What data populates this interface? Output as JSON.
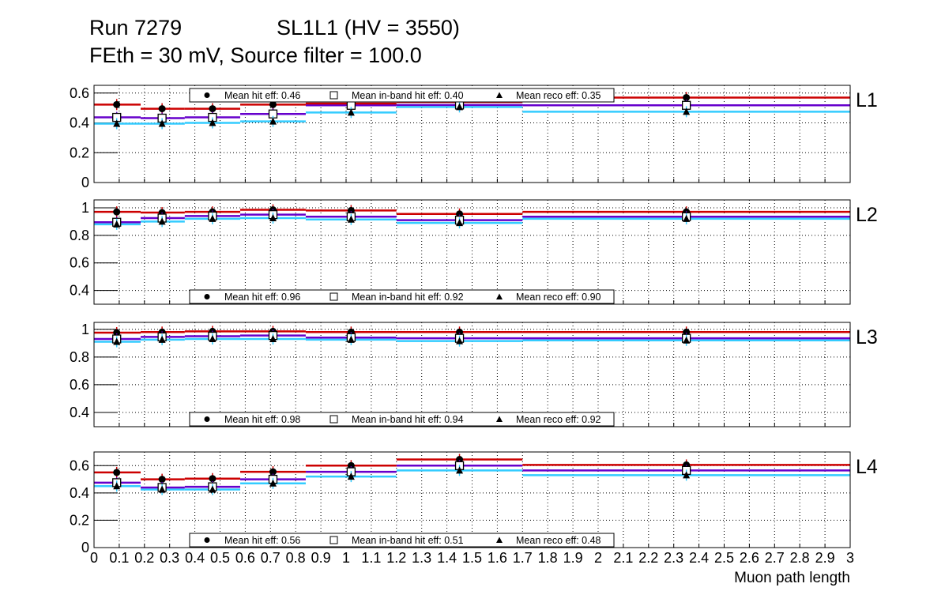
{
  "title": {
    "run": "Run 7279",
    "chamber": "SL1L1 (HV = 3550)",
    "subtitle": "FEth = 30 mV, Source filter = 100.0"
  },
  "colors": {
    "hit": "#cc0000",
    "inband": "#6600cc",
    "reco": "#33ccff"
  },
  "chart_data": {
    "type": "step",
    "xlabel": "Muon path length",
    "xlim": [
      0,
      3
    ],
    "x_tick_labels": [
      "0",
      "0.1",
      "0.2",
      "0.3",
      "0.4",
      "0.5",
      "0.6",
      "0.7",
      "0.8",
      "0.9",
      "1",
      "1.1",
      "1.2",
      "1.3",
      "1.4",
      "1.5",
      "1.6",
      "1.7",
      "1.8",
      "1.9",
      "2",
      "2.1",
      "2.2",
      "2.3",
      "2.4",
      "2.5",
      "2.6",
      "2.7",
      "2.8",
      "2.9",
      "3"
    ],
    "bin_edges": [
      0,
      0.185,
      0.36,
      0.58,
      0.84,
      1.2,
      1.7,
      3.0
    ],
    "point_x": [
      0.09,
      0.27,
      0.47,
      0.71,
      1.02,
      1.45,
      2.35
    ],
    "panels": [
      {
        "label": "L1",
        "ylim": [
          0,
          0.652
        ],
        "yticks": [
          "0",
          "0.2",
          "0.4",
          "0.6"
        ],
        "legend_pos": "top",
        "legend": [
          "Mean hit  eff: 0.46",
          "Mean in-band hit eff: 0.40",
          "Mean reco eff: 0.35"
        ],
        "series": [
          {
            "name": "hit",
            "values": [
              0.523,
              0.495,
              0.495,
              0.523,
              0.53,
              0.54,
              0.57
            ]
          },
          {
            "name": "inband",
            "values": [
              0.437,
              0.432,
              0.437,
              0.46,
              0.518,
              0.52,
              0.518
            ]
          },
          {
            "name": "reco",
            "values": [
              0.395,
              0.395,
              0.4,
              0.41,
              0.47,
              0.507,
              0.475
            ]
          }
        ]
      },
      {
        "label": "L2",
        "ylim": [
          0.3,
          1.057
        ],
        "yticks": [
          "0.4",
          "0.6",
          "0.8",
          "1"
        ],
        "legend_pos": "bottom",
        "legend": [
          "Mean hit  eff: 0.96",
          "Mean in-band hit eff: 0.92",
          "Mean reco eff: 0.90"
        ],
        "series": [
          {
            "name": "hit",
            "values": [
              0.97,
              0.965,
              0.97,
              0.985,
              0.98,
              0.955,
              0.97
            ]
          },
          {
            "name": "inband",
            "values": [
              0.895,
              0.925,
              0.94,
              0.95,
              0.935,
              0.91,
              0.935
            ]
          },
          {
            "name": "reco",
            "values": [
              0.88,
              0.9,
              0.92,
              0.925,
              0.915,
              0.89,
              0.92
            ]
          }
        ]
      },
      {
        "label": "L3",
        "ylim": [
          0.297,
          1.05
        ],
        "yticks": [
          "0.4",
          "0.6",
          "0.8",
          "1"
        ],
        "legend_pos": "bottom",
        "legend": [
          "Mean hit  eff: 0.98",
          "Mean in-band hit eff: 0.94",
          "Mean reco eff: 0.92"
        ],
        "series": [
          {
            "name": "hit",
            "values": [
              0.976,
              0.98,
              0.985,
              0.985,
              0.98,
              0.98,
              0.98
            ]
          },
          {
            "name": "inband",
            "values": [
              0.93,
              0.945,
              0.95,
              0.955,
              0.94,
              0.935,
              0.935
            ]
          },
          {
            "name": "reco",
            "values": [
              0.91,
              0.925,
              0.93,
              0.93,
              0.925,
              0.915,
              0.92
            ]
          }
        ]
      },
      {
        "label": "L4",
        "ylim": [
          0,
          0.7
        ],
        "yticks": [
          "0",
          "0.2",
          "0.4",
          "0.6"
        ],
        "legend_pos": "bottom",
        "legend": [
          "Mean hit  eff: 0.56",
          "Mean in-band hit eff: 0.51",
          "Mean reco eff: 0.48"
        ],
        "series": [
          {
            "name": "hit",
            "values": [
              0.55,
              0.5,
              0.505,
              0.555,
              0.6,
              0.645,
              0.605
            ]
          },
          {
            "name": "inband",
            "values": [
              0.475,
              0.44,
              0.445,
              0.5,
              0.555,
              0.6,
              0.565
            ]
          },
          {
            "name": "reco",
            "values": [
              0.45,
              0.425,
              0.425,
              0.47,
              0.52,
              0.565,
              0.53
            ]
          }
        ]
      }
    ]
  }
}
